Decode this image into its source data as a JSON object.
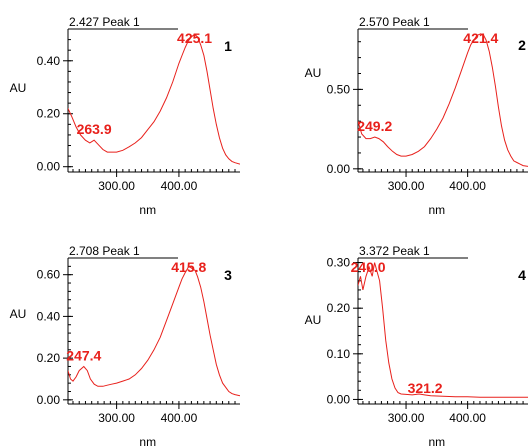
{
  "colors": {
    "line": "#e8211c",
    "peak_label": "#e8211c",
    "axis": "#000000"
  },
  "chart_data": [
    {
      "type": "line",
      "title": "2.427 Peak 1",
      "panel_number": "1",
      "xlabel": "nm",
      "ylabel": "AU",
      "xlim": [
        222,
        498
      ],
      "ylim": [
        -0.02,
        0.52
      ],
      "xticks": [
        {
          "value": 300,
          "label": "300.00"
        },
        {
          "value": 400,
          "label": "400.00"
        }
      ],
      "yticks": [
        {
          "value": 0.0,
          "label": "0.00"
        },
        {
          "value": 0.2,
          "label": "0.20"
        },
        {
          "value": 0.4,
          "label": "0.40"
        }
      ],
      "peaks": [
        {
          "x": 425.1,
          "y": 0.5,
          "label": "425.1"
        },
        {
          "x": 263.9,
          "y": 0.1,
          "label": "263.9"
        }
      ],
      "series": [
        {
          "x": [
            222,
            228,
            235,
            242,
            250,
            257,
            263.9,
            270,
            278,
            285,
            292,
            300,
            310,
            320,
            330,
            340,
            350,
            360,
            370,
            380,
            390,
            400,
            405,
            410,
            415,
            420,
            425.1,
            430,
            435,
            440,
            445,
            450,
            455,
            460,
            465,
            470,
            475,
            480,
            485,
            490,
            498
          ],
          "y": [
            0.22,
            0.19,
            0.15,
            0.12,
            0.1,
            0.09,
            0.1,
            0.085,
            0.065,
            0.055,
            0.055,
            0.055,
            0.062,
            0.075,
            0.09,
            0.11,
            0.14,
            0.17,
            0.21,
            0.26,
            0.32,
            0.39,
            0.42,
            0.45,
            0.475,
            0.49,
            0.5,
            0.49,
            0.46,
            0.42,
            0.36,
            0.29,
            0.22,
            0.16,
            0.11,
            0.07,
            0.045,
            0.03,
            0.02,
            0.015,
            0.01
          ]
        }
      ]
    },
    {
      "type": "line",
      "title": "2.570 Peak 1",
      "panel_number": "2",
      "xlabel": "nm",
      "ylabel": "AU",
      "xlim": [
        222,
        498
      ],
      "ylim": [
        -0.02,
        0.88
      ],
      "xticks": [
        {
          "value": 300,
          "label": "300.00"
        },
        {
          "value": 400,
          "label": "400.00"
        }
      ],
      "yticks": [
        {
          "value": 0.0,
          "label": "0.00"
        },
        {
          "value": 0.5,
          "label": "0.50"
        }
      ],
      "peaks": [
        {
          "x": 421.4,
          "y": 0.85,
          "label": "421.4"
        },
        {
          "x": 249.2,
          "y": 0.2,
          "label": "249.2"
        }
      ],
      "series": [
        {
          "x": [
            222,
            228,
            235,
            242,
            249.2,
            256,
            263,
            270,
            278,
            285,
            292,
            300,
            310,
            320,
            330,
            340,
            350,
            360,
            370,
            380,
            390,
            400,
            405,
            410,
            415,
            421.4,
            426,
            430,
            435,
            440,
            445,
            450,
            455,
            460,
            465,
            470,
            475,
            480,
            485,
            490,
            498
          ],
          "y": [
            0.3,
            0.22,
            0.19,
            0.19,
            0.2,
            0.19,
            0.17,
            0.14,
            0.11,
            0.09,
            0.08,
            0.08,
            0.09,
            0.11,
            0.14,
            0.19,
            0.25,
            0.32,
            0.41,
            0.51,
            0.62,
            0.73,
            0.78,
            0.81,
            0.84,
            0.85,
            0.84,
            0.81,
            0.74,
            0.64,
            0.52,
            0.39,
            0.27,
            0.18,
            0.12,
            0.08,
            0.05,
            0.04,
            0.03,
            0.02,
            0.015
          ]
        }
      ]
    },
    {
      "type": "line",
      "title": "2.708 Peak 1",
      "panel_number": "3",
      "xlabel": "nm",
      "ylabel": "AU",
      "xlim": [
        222,
        498
      ],
      "ylim": [
        -0.02,
        0.68
      ],
      "xticks": [
        {
          "value": 300,
          "label": "300.00"
        },
        {
          "value": 400,
          "label": "400.00"
        }
      ],
      "yticks": [
        {
          "value": 0.0,
          "label": "0.00"
        },
        {
          "value": 0.2,
          "label": "0.20"
        },
        {
          "value": 0.4,
          "label": "0.40"
        },
        {
          "value": 0.6,
          "label": "0.60"
        }
      ],
      "peaks": [
        {
          "x": 415.8,
          "y": 0.64,
          "label": "415.8"
        },
        {
          "x": 247.4,
          "y": 0.16,
          "label": "247.4"
        }
      ],
      "series": [
        {
          "x": [
            222,
            226,
            230,
            235,
            240,
            247.4,
            253,
            258,
            264,
            270,
            278,
            285,
            292,
            300,
            310,
            320,
            330,
            340,
            350,
            360,
            370,
            380,
            390,
            400,
            405,
            410,
            415.8,
            421,
            426,
            430,
            435,
            440,
            445,
            450,
            455,
            460,
            465,
            470,
            475,
            480,
            485,
            490,
            498
          ],
          "y": [
            0.14,
            0.1,
            0.09,
            0.11,
            0.14,
            0.16,
            0.14,
            0.1,
            0.075,
            0.065,
            0.065,
            0.07,
            0.075,
            0.08,
            0.09,
            0.1,
            0.12,
            0.15,
            0.19,
            0.24,
            0.3,
            0.38,
            0.46,
            0.54,
            0.58,
            0.61,
            0.64,
            0.63,
            0.62,
            0.59,
            0.54,
            0.47,
            0.39,
            0.31,
            0.24,
            0.17,
            0.12,
            0.08,
            0.06,
            0.04,
            0.03,
            0.025,
            0.02
          ]
        }
      ]
    },
    {
      "type": "line",
      "title": "3.372 Peak 1",
      "panel_number": "4",
      "xlabel": "nm",
      "ylabel": "AU",
      "xlim": [
        222,
        498
      ],
      "ylim": [
        -0.01,
        0.31
      ],
      "xticks": [
        {
          "value": 300,
          "label": "300.00"
        },
        {
          "value": 400,
          "label": "400.00"
        }
      ],
      "yticks": [
        {
          "value": 0.0,
          "label": "0.00"
        },
        {
          "value": 0.1,
          "label": "0.10"
        },
        {
          "value": 0.2,
          "label": "0.20"
        },
        {
          "value": 0.3,
          "label": "0.30"
        }
      ],
      "peaks": [
        {
          "x": 240.0,
          "y": 0.29,
          "label": "240.0"
        },
        {
          "x": 321.2,
          "y": 0.01,
          "label": "321.2"
        }
      ],
      "series": [
        {
          "x": [
            222,
            226,
            230,
            235,
            240,
            245,
            249,
            253,
            257,
            262,
            267,
            272,
            277,
            282,
            287,
            292,
            300,
            310,
            321.2,
            330,
            340,
            360,
            380,
            400,
            420,
            440,
            460,
            480,
            498
          ],
          "y": [
            0.25,
            0.27,
            0.24,
            0.27,
            0.29,
            0.27,
            0.3,
            0.28,
            0.26,
            0.2,
            0.13,
            0.08,
            0.045,
            0.025,
            0.015,
            0.012,
            0.011,
            0.01,
            0.012,
            0.01,
            0.008,
            0.007,
            0.006,
            0.006,
            0.005,
            0.005,
            0.005,
            0.005,
            0.005
          ]
        }
      ]
    }
  ]
}
